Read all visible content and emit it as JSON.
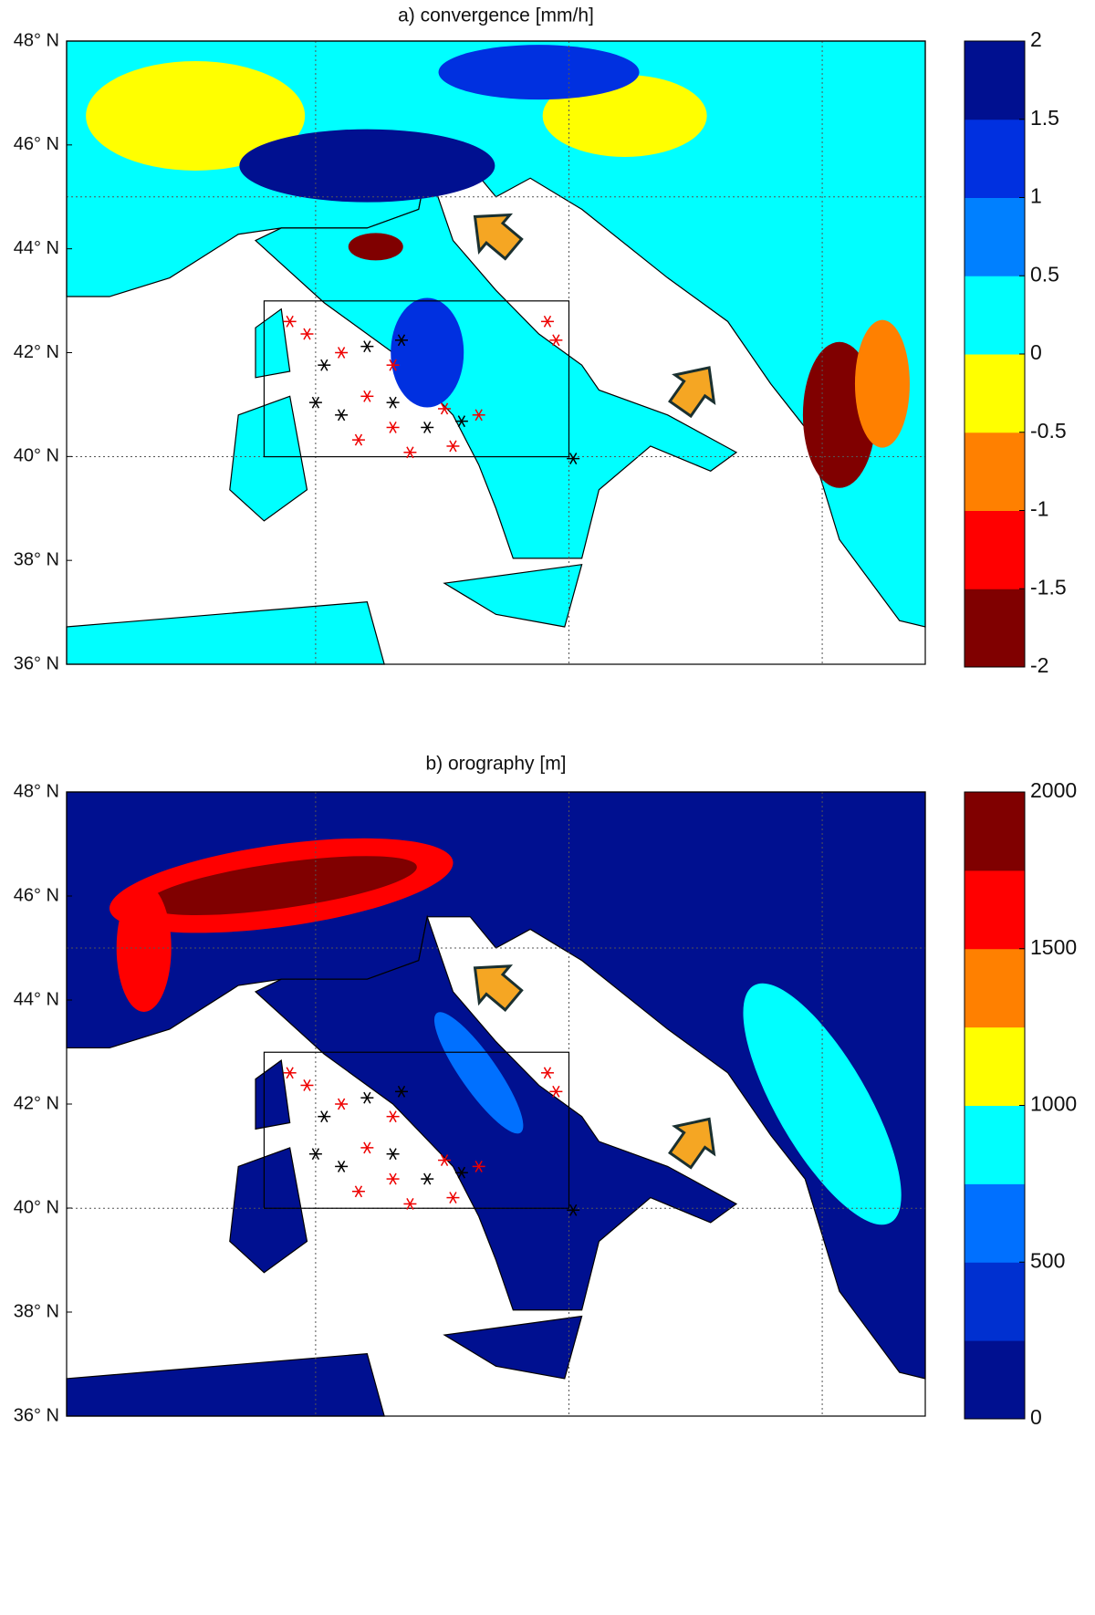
{
  "chart_data": [
    {
      "type": "map",
      "title": "a) convergence [mm/h]",
      "yticks": [
        {
          "value": 48,
          "label": "48° N"
        },
        {
          "value": 46,
          "label": "46° N"
        },
        {
          "value": 44,
          "label": "44° N"
        },
        {
          "value": 42,
          "label": "42° N"
        },
        {
          "value": 40,
          "label": "40° N"
        },
        {
          "value": 38,
          "label": "38° N"
        },
        {
          "value": 36,
          "label": "36° N"
        }
      ],
      "ylim": [
        36,
        48
      ],
      "colorbar": {
        "lim": [
          -2,
          2
        ],
        "ticks": [
          -2,
          -1.5,
          -1,
          -0.5,
          0,
          0.5,
          1,
          1.5,
          2
        ],
        "colors": [
          "#800000",
          "#ff0000",
          "#ff8000",
          "#ffff00",
          "#00ffff",
          "#0080ff",
          "#0030e0",
          "#001090"
        ]
      }
    },
    {
      "type": "map",
      "title": "b) orography [m]",
      "yticks": [
        {
          "value": 48,
          "label": "48° N"
        },
        {
          "value": 46,
          "label": "46° N"
        },
        {
          "value": 44,
          "label": "44° N"
        },
        {
          "value": 42,
          "label": "42° N"
        },
        {
          "value": 40,
          "label": "40° N"
        },
        {
          "value": 38,
          "label": "38° N"
        },
        {
          "value": 36,
          "label": "36° N"
        }
      ],
      "ylim": [
        36,
        48
      ],
      "colorbar": {
        "lim": [
          0,
          2000
        ],
        "ticks": [
          0,
          500,
          1000,
          1500,
          2000
        ],
        "colors": [
          "#001090",
          "#0030d0",
          "#0070ff",
          "#00ffff",
          "#ffff00",
          "#ff8000",
          "#ff0000",
          "#800000"
        ]
      }
    }
  ]
}
